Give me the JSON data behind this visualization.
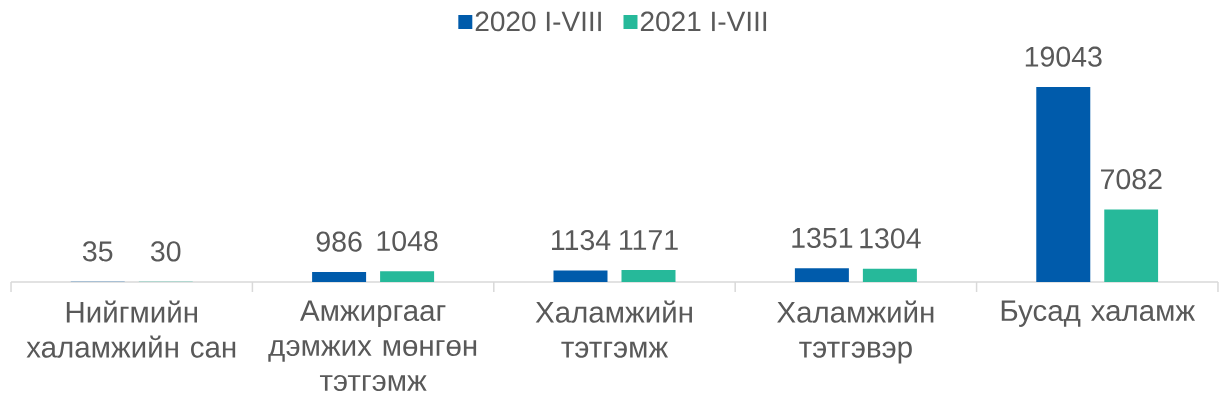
{
  "chart_data": {
    "type": "bar",
    "categories": [
      "Нийгмийн халамжийн сан",
      "Амжиргааг дэмжих мөнгөн тэтгэмж",
      "Халамжийн тэтгэмж",
      "Халамжийн тэтгэвэр",
      "Бусад халамж"
    ],
    "series": [
      {
        "name": "2020 I-VIII",
        "color": "#005bab",
        "values": [
          35,
          986,
          1134,
          1351,
          19043
        ]
      },
      {
        "name": "2021 I-VIII",
        "color": "#26b99a",
        "values": [
          30,
          1048,
          1171,
          1304,
          7082
        ]
      }
    ],
    "data_labels": true,
    "legend": "top"
  }
}
